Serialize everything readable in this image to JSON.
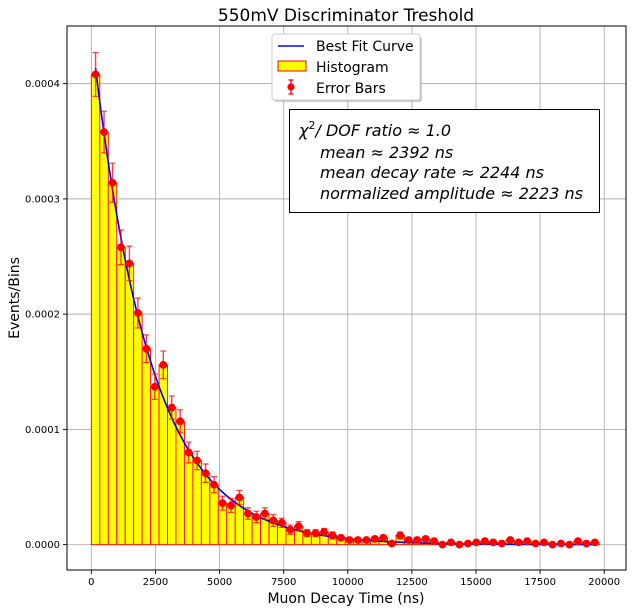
{
  "chart_data": {
    "type": "bar",
    "title": "550mV Discriminator Treshold",
    "xlabel": "Muon Decay Time (ns)",
    "ylabel": "Events/Bins",
    "xlim": [
      -950,
      20850
    ],
    "ylim": [
      -2.2e-05,
      0.00045
    ],
    "grid": true,
    "xticks": [
      0,
      2500,
      5000,
      7500,
      10000,
      12500,
      15000,
      17500,
      20000
    ],
    "xtick_labels": [
      "0",
      "2500",
      "5000",
      "7500",
      "10000",
      "12500",
      "15000",
      "17500",
      "20000"
    ],
    "yticks": [
      0,
      0.0001,
      0.0002,
      0.0003,
      0.0004
    ],
    "ytick_labels": [
      "0.0000",
      "0.0001",
      "0.0002",
      "0.0003",
      "0.0004"
    ],
    "bin_width": 330,
    "bin_start": 0,
    "legend": {
      "placement": "upper-center",
      "entries": [
        "Best Fit Curve",
        "Histogram",
        "Error Bars"
      ]
    },
    "series": [
      {
        "name": "Histogram",
        "kind": "bar",
        "color": "#ffff00",
        "edgecolor": "#ff0000",
        "values": [
          0.000408,
          0.000358,
          0.000314,
          0.000258,
          0.000244,
          0.000201,
          0.00017,
          0.000137,
          0.000156,
          0.000119,
          0.000107,
          8e-05,
          7.3e-05,
          6.2e-05,
          5.2e-05,
          3.6e-05,
          3.4e-05,
          4.1e-05,
          2.7e-05,
          2.4e-05,
          2.7e-05,
          2.1e-05,
          1.9e-05,
          1.3e-05,
          1.6e-05,
          1e-05,
          1e-05,
          1.1e-05,
          8e-06,
          6e-06,
          4e-06,
          4e-06,
          4e-06,
          5e-06,
          6e-06,
          1e-06,
          8e-06,
          4e-06,
          4e-06,
          5e-06,
          3e-06,
          0.0,
          2e-06,
          0.0,
          1e-06,
          2e-06,
          3e-06,
          2e-06,
          1e-06,
          4e-06,
          2e-06,
          3e-06,
          1e-06,
          2e-06,
          0.0,
          1e-06,
          0.0,
          3e-06,
          1e-06,
          2e-06
        ]
      },
      {
        "name": "Error Bars",
        "kind": "errorbar",
        "color": "#ff0000",
        "errors": [
          1.9e-05,
          1.8e-05,
          1.7e-05,
          1.5e-05,
          1.5e-05,
          1.3e-05,
          1.2e-05,
          1.1e-05,
          1.2e-05,
          1e-05,
          1e-05,
          9e-06,
          8e-06,
          8e-06,
          7e-06,
          6e-06,
          6e-06,
          6e-06,
          5e-06,
          5e-06,
          5e-06,
          5e-06,
          4e-06,
          4e-06,
          4e-06,
          3e-06,
          3e-06,
          3e-06,
          3e-06,
          2e-06,
          2e-06,
          2e-06,
          2e-06,
          2e-06,
          2e-06,
          1e-06,
          3e-06,
          2e-06,
          2e-06,
          2e-06,
          2e-06,
          1e-06,
          1e-06,
          1e-06,
          1e-06,
          1e-06,
          2e-06,
          1e-06,
          1e-06,
          2e-06,
          1e-06,
          2e-06,
          1e-06,
          1e-06,
          1e-06,
          1e-06,
          1e-06,
          2e-06,
          1e-06,
          1e-06
        ]
      },
      {
        "name": "Best Fit Curve",
        "kind": "line",
        "color": "#0000ff",
        "model": "exponential",
        "amplitude": 0.000445,
        "tau": 2244
      }
    ],
    "annotation": {
      "line1_prefix": "χ",
      "line1_sup": "2",
      "line1_rest": "/ DOF ratio  ≈  1.0",
      "line2": "mean  ≈  2392 ns",
      "line3": "mean decay rate  ≈  2244 ns",
      "line4": "normalized amplitude  ≈  2223 ns"
    }
  }
}
